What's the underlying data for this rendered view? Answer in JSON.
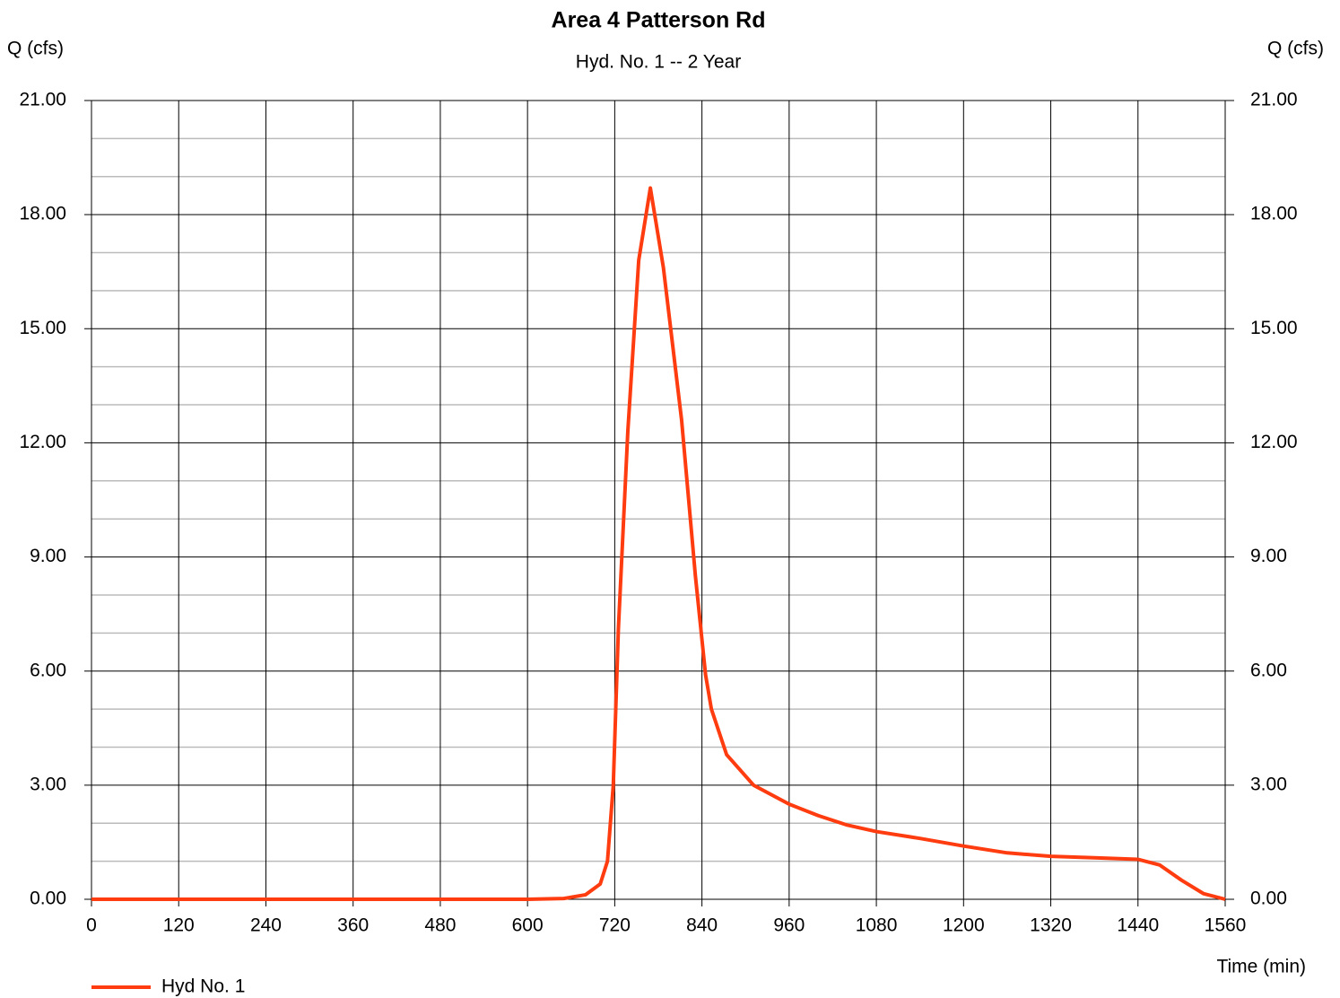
{
  "chart_data": {
    "type": "line",
    "title": "Area 4 Patterson Rd",
    "subtitle": "Hyd. No. 1 -- 2 Year",
    "ylabel": "Q (cfs)",
    "y2label": "Q (cfs)",
    "xlabel": "Time (min)",
    "xlim": [
      0,
      1560
    ],
    "xticks": [
      0,
      120,
      240,
      360,
      480,
      600,
      720,
      840,
      960,
      1080,
      1200,
      1320,
      1440,
      1560
    ],
    "ylim": [
      0,
      21
    ],
    "yticks": [
      {
        "value": 0,
        "label": "0.00"
      },
      {
        "value": 3,
        "label": "3.00"
      },
      {
        "value": 6,
        "label": "6.00"
      },
      {
        "value": 9,
        "label": "9.00"
      },
      {
        "value": 12,
        "label": "12.00"
      },
      {
        "value": 15,
        "label": "15.00"
      },
      {
        "value": 18,
        "label": "18.00"
      },
      {
        "value": 21,
        "label": "21.00"
      }
    ],
    "yminorticks": [
      1,
      2,
      4,
      5,
      7,
      8,
      10,
      11,
      13,
      14,
      16,
      17,
      19,
      20
    ],
    "y2lim": [
      0,
      21
    ],
    "y2ticks": [
      {
        "value": 0,
        "label": "0.00"
      },
      {
        "value": 3,
        "label": "3.00"
      },
      {
        "value": 6,
        "label": "6.00"
      },
      {
        "value": 9,
        "label": "9.00"
      },
      {
        "value": 12,
        "label": "12.00"
      },
      {
        "value": 15,
        "label": "15.00"
      },
      {
        "value": 18,
        "label": "18.00"
      },
      {
        "value": 21,
        "label": "21.00"
      }
    ],
    "grid": true,
    "legend": "bottom-left",
    "x": [
      0,
      600,
      650,
      680,
      700,
      710,
      718,
      725,
      738,
      753,
      769,
      787,
      812,
      831,
      845,
      853,
      874,
      911,
      960,
      1000,
      1040,
      1080,
      1140,
      1200,
      1260,
      1320,
      1380,
      1440,
      1470,
      1500,
      1530,
      1560
    ],
    "series": [
      {
        "name": "Hyd No. 1",
        "color": "#ff3c0f",
        "values": [
          0,
          0,
          0.02,
          0.12,
          0.4,
          1.0,
          3.0,
          7.1,
          12.3,
          16.8,
          18.7,
          16.6,
          12.6,
          8.5,
          5.9,
          5.0,
          3.8,
          3.0,
          2.5,
          2.2,
          1.95,
          1.78,
          1.6,
          1.4,
          1.22,
          1.13,
          1.09,
          1.05,
          0.9,
          0.5,
          0.15,
          0
        ]
      }
    ]
  }
}
